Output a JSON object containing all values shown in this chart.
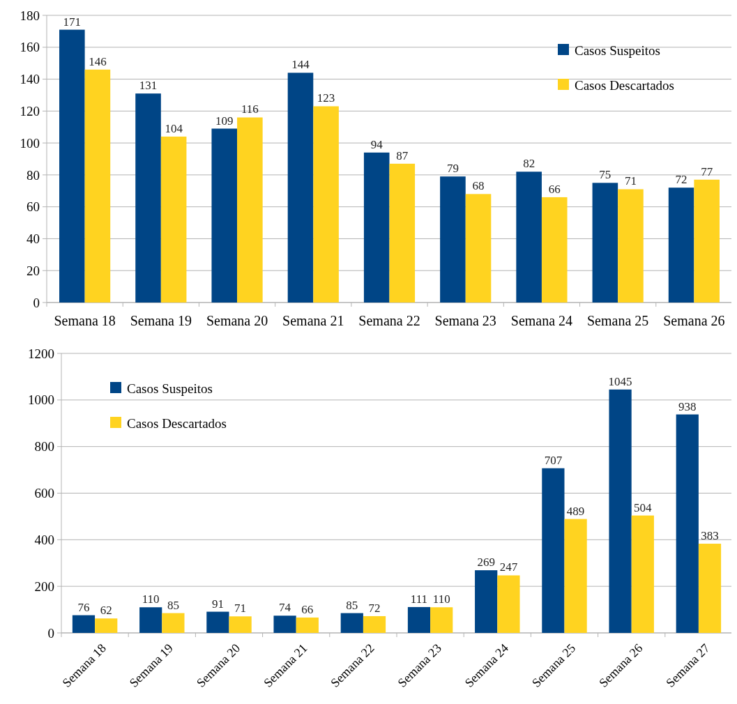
{
  "chart_data": [
    {
      "type": "bar",
      "categories": [
        "Semana 18",
        "Semana 19",
        "Semana 20",
        "Semana 21",
        "Semana 22",
        "Semana 23",
        "Semana 24",
        "Semana 25",
        "Semana 26"
      ],
      "series": [
        {
          "name": "Casos Suspeitos",
          "color": "#004586",
          "values": [
            171,
            131,
            109,
            144,
            94,
            79,
            82,
            75,
            72
          ]
        },
        {
          "name": "Casos Descartados",
          "color": "#ffd320",
          "values": [
            146,
            104,
            116,
            123,
            87,
            68,
            66,
            71,
            77
          ]
        }
      ],
      "ylim": [
        0,
        180
      ],
      "yticks": [
        0,
        20,
        40,
        60,
        80,
        100,
        120,
        140,
        160,
        180
      ],
      "grid": "y",
      "legend": "top right",
      "data_labels": true
    },
    {
      "type": "bar",
      "categories": [
        "Semana 18",
        "Semana 19",
        "Semana 20",
        "Semana 21",
        "Semana 22",
        "Semana 23",
        "Semana 24",
        "Semana 25",
        "Semana 26",
        "Semana 27"
      ],
      "series": [
        {
          "name": "Casos Suspeitos",
          "color": "#004586",
          "values": [
            76,
            110,
            91,
            74,
            85,
            111,
            269,
            707,
            1045,
            938
          ]
        },
        {
          "name": "Casos Descartados",
          "color": "#ffd320",
          "values": [
            62,
            85,
            71,
            66,
            72,
            110,
            247,
            489,
            504,
            383
          ]
        }
      ],
      "ylim": [
        0,
        1200
      ],
      "yticks": [
        0,
        200,
        400,
        600,
        800,
        1000,
        1200
      ],
      "grid": "y",
      "legend": "top left",
      "data_labels": true
    }
  ]
}
